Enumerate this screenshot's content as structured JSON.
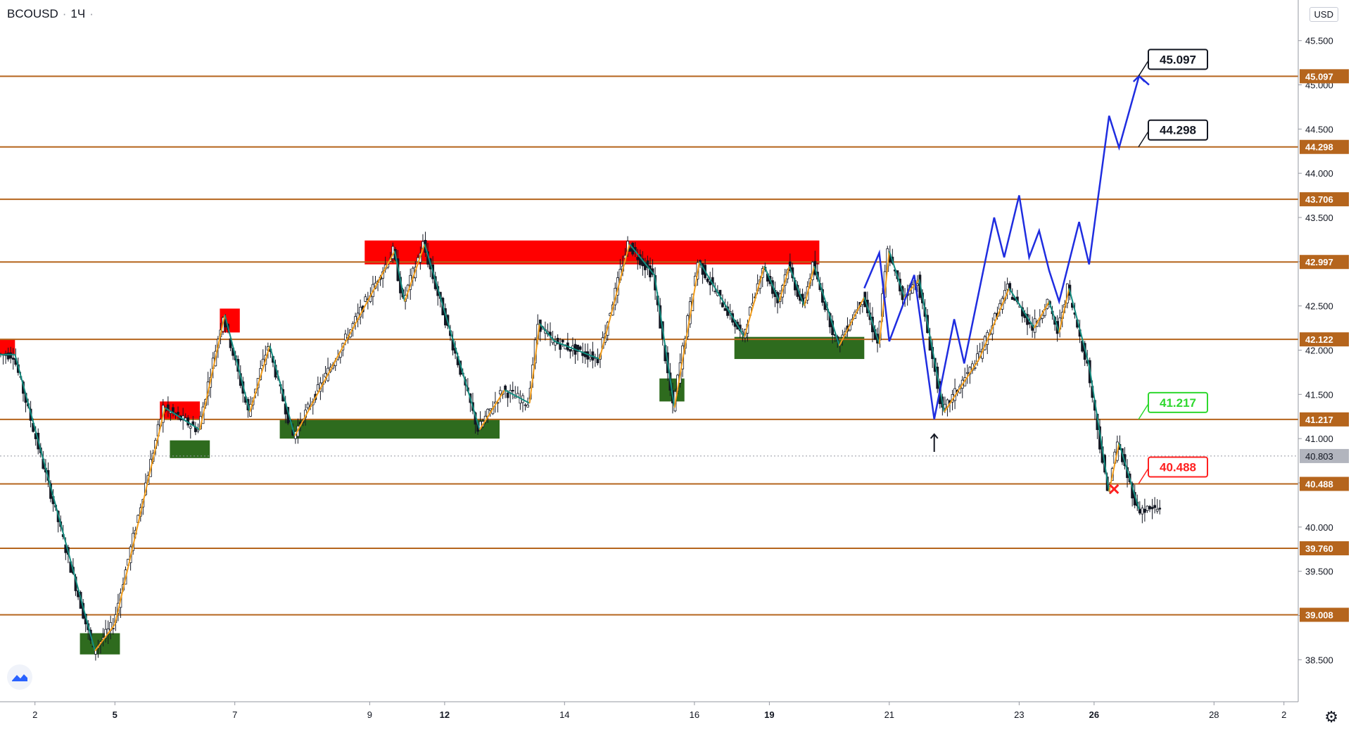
{
  "header": {
    "symbol": "BCOUSD",
    "interval": "1Ч",
    "currency": "USD"
  },
  "chart_data": {
    "type": "candlestick",
    "title": "BCOUSD · 1Ч",
    "ylim": [
      38.2,
      45.8
    ],
    "y_ticks": [
      "38.500",
      "39.000",
      "39.500",
      "40.000",
      "40.500",
      "41.000",
      "41.500",
      "42.000",
      "42.500",
      "43.000",
      "43.500",
      "44.000",
      "44.500",
      "45.000",
      "45.500"
    ],
    "x_ticks": [
      {
        "label": "2",
        "bold": false,
        "idx": 7
      },
      {
        "label": "5",
        "bold": true,
        "idx": 23
      },
      {
        "label": "7",
        "bold": false,
        "idx": 47
      },
      {
        "label": "9",
        "bold": false,
        "idx": 74
      },
      {
        "label": "12",
        "bold": true,
        "idx": 89
      },
      {
        "label": "14",
        "bold": false,
        "idx": 113
      },
      {
        "label": "16",
        "bold": false,
        "idx": 139
      },
      {
        "label": "19",
        "bold": true,
        "idx": 154
      },
      {
        "label": "21",
        "bold": false,
        "idx": 178
      },
      {
        "label": "23",
        "bold": false,
        "idx": 204
      },
      {
        "label": "26",
        "bold": true,
        "idx": 219
      },
      {
        "label": "28",
        "bold": false,
        "idx": 243
      },
      {
        "label": "2",
        "bold": false,
        "idx": 257
      }
    ],
    "levels": [
      {
        "value": 45.097,
        "label": "45.097"
      },
      {
        "value": 44.298,
        "label": "44.298"
      },
      {
        "value": 43.706,
        "label": "43.706"
      },
      {
        "value": 42.997,
        "label": "42.997"
      },
      {
        "value": 42.122,
        "label": "42.122"
      },
      {
        "value": 41.217,
        "label": "41.217"
      },
      {
        "value": 40.488,
        "label": "40.488"
      },
      {
        "value": 39.76,
        "label": "39.760"
      },
      {
        "value": 39.008,
        "label": "39.008"
      }
    ],
    "current_price": {
      "value": 40.803,
      "label": "40.803"
    },
    "supply_zones": [
      {
        "x0": 0,
        "x1": 3,
        "y0": 41.95,
        "y1": 42.12
      },
      {
        "x0": 44,
        "x1": 48,
        "y0": 42.2,
        "y1": 42.47
      },
      {
        "x0": 32,
        "x1": 40,
        "y0": 41.22,
        "y1": 41.42
      },
      {
        "x0": 73,
        "x1": 164,
        "y0": 42.97,
        "y1": 43.24
      }
    ],
    "demand_zones": [
      {
        "x0": 16,
        "x1": 24,
        "y0": 38.56,
        "y1": 38.8
      },
      {
        "x0": 34,
        "x1": 42,
        "y0": 40.78,
        "y1": 40.98
      },
      {
        "x0": 56,
        "x1": 100,
        "y0": 41.0,
        "y1": 41.22
      },
      {
        "x0": 132,
        "x1": 137,
        "y0": 41.42,
        "y1": 41.68
      },
      {
        "x0": 147,
        "x1": 173,
        "y0": 41.9,
        "y1": 42.15
      }
    ],
    "swings": [
      [
        0,
        41.95
      ],
      [
        3,
        41.95
      ],
      [
        19,
        38.6
      ],
      [
        23,
        38.9
      ],
      [
        33,
        41.35
      ],
      [
        40,
        41.1
      ],
      [
        45,
        42.4
      ],
      [
        50,
        41.3
      ],
      [
        54,
        42.05
      ],
      [
        59,
        41.03
      ],
      [
        79,
        43.12
      ],
      [
        81,
        42.55
      ],
      [
        85,
        43.2
      ],
      [
        96,
        41.1
      ],
      [
        101,
        41.55
      ],
      [
        106,
        41.4
      ],
      [
        108,
        42.3
      ],
      [
        111,
        42.1
      ],
      [
        120,
        41.9
      ],
      [
        126,
        43.2
      ],
      [
        131,
        42.85
      ],
      [
        135,
        41.35
      ],
      [
        140,
        43.0
      ],
      [
        149,
        42.15
      ],
      [
        153,
        42.95
      ],
      [
        156,
        42.55
      ],
      [
        158,
        42.95
      ],
      [
        161,
        42.5
      ],
      [
        163,
        42.95
      ],
      [
        168,
        42.05
      ],
      [
        173,
        42.6
      ],
      [
        176,
        42.07
      ],
      [
        178,
        43.12
      ],
      [
        181,
        42.6
      ],
      [
        184,
        42.8
      ],
      [
        189,
        41.3
      ],
      [
        196,
        41.9
      ],
      [
        202,
        42.7
      ],
      [
        207,
        42.25
      ],
      [
        210,
        42.55
      ],
      [
        212,
        42.2
      ],
      [
        214,
        42.7
      ],
      [
        218,
        41.83
      ],
      [
        222,
        40.4
      ],
      [
        224,
        40.95
      ],
      [
        228,
        40.2
      ]
    ],
    "projection": [
      [
        173,
        42.7
      ],
      [
        176,
        43.1
      ],
      [
        178,
        42.1
      ],
      [
        183,
        42.85
      ],
      [
        187,
        41.22
      ],
      [
        191,
        42.35
      ],
      [
        193,
        41.85
      ],
      [
        199,
        43.5
      ],
      [
        201,
        43.05
      ],
      [
        204,
        43.75
      ],
      [
        206,
        43.05
      ],
      [
        208,
        43.35
      ],
      [
        210,
        42.9
      ],
      [
        212,
        42.55
      ],
      [
        216,
        43.45
      ],
      [
        218,
        42.97
      ],
      [
        222,
        44.65
      ],
      [
        224,
        44.29
      ],
      [
        228,
        45.1
      ],
      [
        230,
        45.0
      ]
    ],
    "arrow_up_idx": 187,
    "x_mark": {
      "idx": 223,
      "value": 40.43
    },
    "callouts": [
      {
        "label": "45.097",
        "value": 45.097,
        "color": "#131722",
        "bg": "#ffffff"
      },
      {
        "label": "44.298",
        "value": 44.298,
        "color": "#131722",
        "bg": "#ffffff"
      },
      {
        "label": "41.217",
        "value": 41.217,
        "color": "#2ed82e",
        "bg": "#ffffff"
      },
      {
        "label": "40.488",
        "value": 40.488,
        "color": "#ff2020",
        "bg": "#ffffff"
      }
    ],
    "candle_count": 236,
    "gridlines": false
  }
}
